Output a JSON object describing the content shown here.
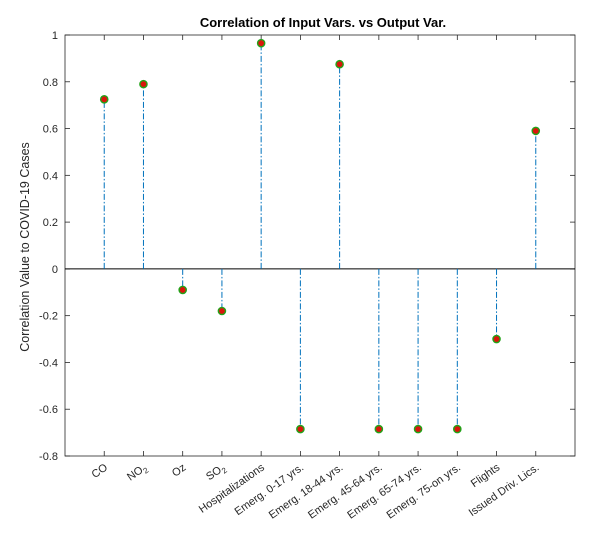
{
  "chart_data": {
    "type": "stem",
    "title": "Correlation of Input Vars. vs Output Var.",
    "xlabel": "",
    "ylabel": "Correlation Value to COVID-19 Cases",
    "ylim": [
      -0.8,
      1
    ],
    "yticks": [
      "-0.8",
      "-0.6",
      "-0.4",
      "-0.2",
      "0",
      "0.2",
      "0.4",
      "0.6",
      "0.8",
      "1"
    ],
    "grid": false,
    "categories": [
      {
        "base": "CO",
        "sub": ""
      },
      {
        "base": "NO",
        "sub": "2"
      },
      {
        "base": "Oz",
        "sub": ""
      },
      {
        "base": "SO",
        "sub": "2"
      },
      {
        "base": "Hospitalizations",
        "sub": ""
      },
      {
        "base": "Emerg. 0-17 yrs.",
        "sub": ""
      },
      {
        "base": "Emerg. 18-44 yrs.",
        "sub": ""
      },
      {
        "base": "Emerg. 45-64 yrs.",
        "sub": ""
      },
      {
        "base": "Emerg. 65-74 yrs.",
        "sub": ""
      },
      {
        "base": "Emerg. 75-on yrs.",
        "sub": ""
      },
      {
        "base": "Flights",
        "sub": ""
      },
      {
        "base": "Issued Driv. Lics.",
        "sub": ""
      }
    ],
    "values": [
      0.725,
      0.79,
      -0.09,
      -0.18,
      0.965,
      -0.685,
      0.875,
      -0.685,
      -0.685,
      -0.685,
      -0.3,
      0.59
    ],
    "colors": {
      "stem": "#0072BD",
      "marker_fill": "#D9170C",
      "marker_edge": "#22A319",
      "axes": "#262626",
      "baseline": "#000000"
    }
  }
}
